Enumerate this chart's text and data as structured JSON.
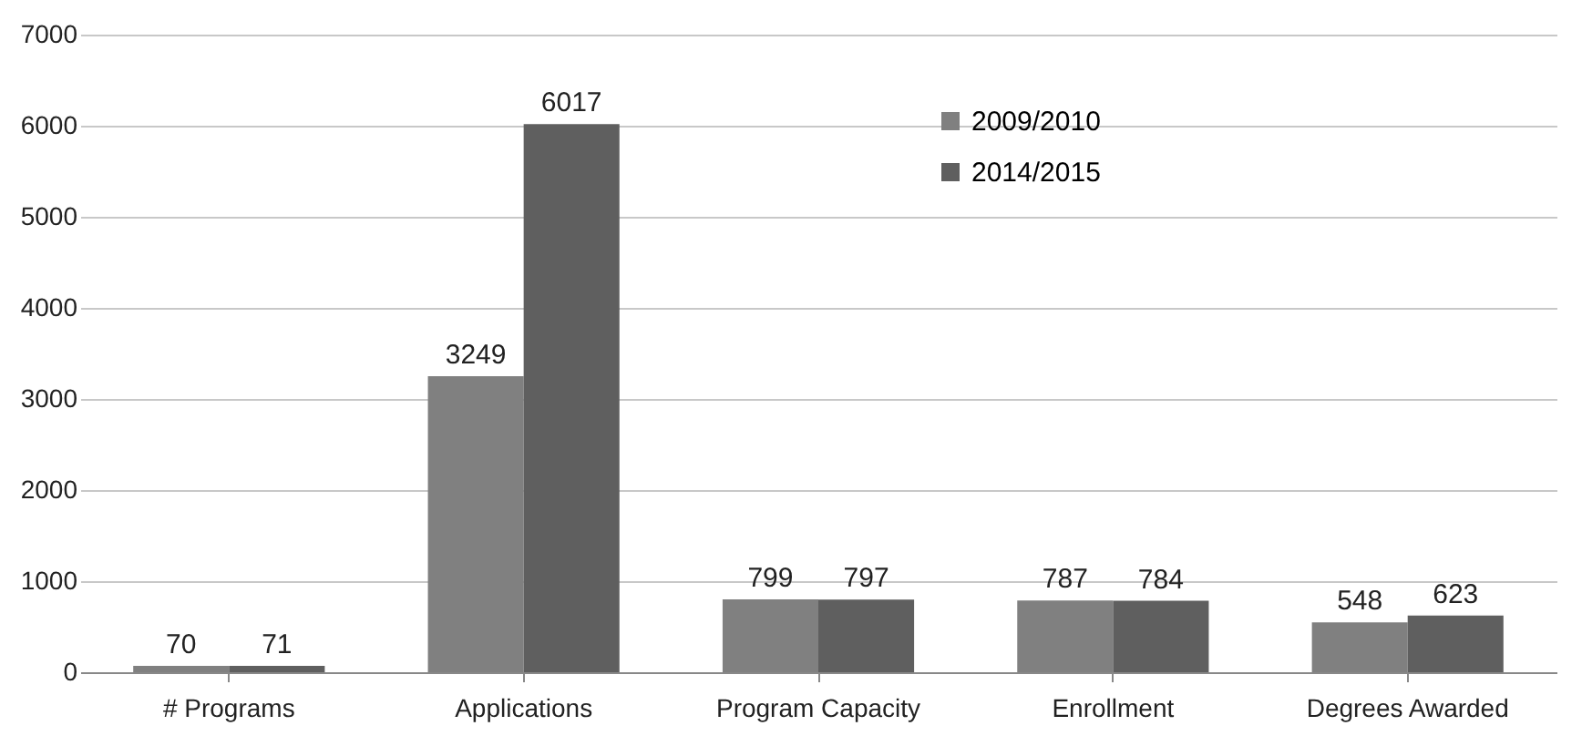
{
  "chart_data": {
    "type": "bar",
    "categories": [
      "# Programs",
      "Applications",
      "Program Capacity",
      "Enrollment",
      "Degrees Awarded"
    ],
    "series": [
      {
        "name": "2009/2010",
        "color": "#808080",
        "values": [
          70,
          3249,
          799,
          787,
          548
        ]
      },
      {
        "name": "2014/2015",
        "color": "#5f5f5f",
        "values": [
          71,
          6017,
          797,
          784,
          623
        ]
      }
    ],
    "ylim": [
      0,
      7000
    ],
    "yticks": [
      0,
      1000,
      2000,
      3000,
      4000,
      5000,
      6000,
      7000
    ],
    "grid": "y",
    "legend": "top right",
    "data_labels": true
  }
}
